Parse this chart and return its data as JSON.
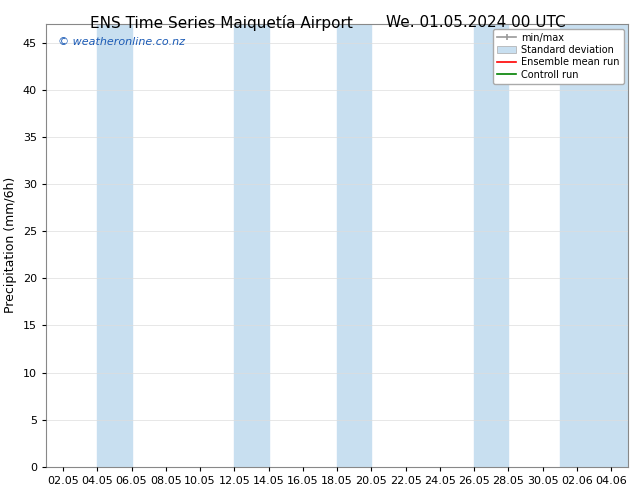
{
  "title_left": "ENS Time Series Maiquetía Airport",
  "title_right": "We. 01.05.2024 00 UTC",
  "ylabel": "Precipitation (mm/6h)",
  "ylim": [
    0,
    47
  ],
  "yticks": [
    0,
    5,
    10,
    15,
    20,
    25,
    30,
    35,
    40,
    45
  ],
  "xtick_labels": [
    "02.05",
    "04.05",
    "06.05",
    "08.05",
    "10.05",
    "12.05",
    "14.05",
    "16.05",
    "18.05",
    "20.05",
    "22.05",
    "24.05",
    "26.05",
    "28.05",
    "30.05",
    "",
    "02.06",
    "04.06"
  ],
  "n_ticks": 18,
  "xlim": [
    0,
    17
  ],
  "shade_bands": [
    {
      "xmin": 1.5,
      "xmax": 2.5
    },
    {
      "xmin": 5.5,
      "xmax": 6.5
    },
    {
      "xmin": 8.5,
      "xmax": 9.5
    },
    {
      "xmin": 12.5,
      "xmax": 13.5
    },
    {
      "xmin": 15.5,
      "xmax": 16.5
    },
    {
      "xmin": 16.5,
      "xmax": 17.5
    }
  ],
  "shade_color": "#c8dff0",
  "background_color": "#ffffff",
  "watermark": "© weatheronline.co.nz",
  "watermark_color": "#1a5ab5",
  "title_fontsize": 11,
  "label_fontsize": 9,
  "tick_fontsize": 8
}
